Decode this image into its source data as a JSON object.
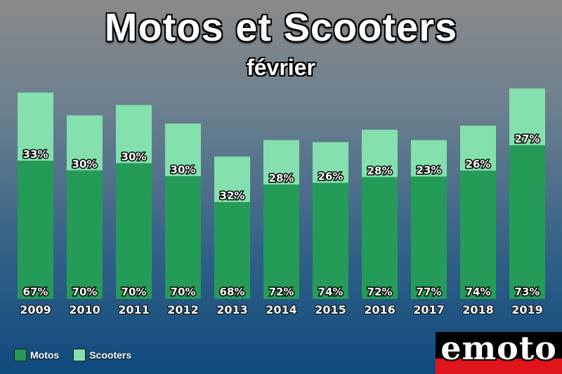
{
  "chart_data": {
    "type": "bar",
    "stacked": true,
    "title": "Motos et Scooters",
    "subtitle": "février",
    "categories": [
      "2009",
      "2010",
      "2011",
      "2012",
      "2013",
      "2014",
      "2015",
      "2016",
      "2017",
      "2018",
      "2019"
    ],
    "series": [
      {
        "name": "Motos",
        "color": "#259b58",
        "values": [
          67,
          70,
          70,
          70,
          68,
          72,
          74,
          72,
          77,
          74,
          73
        ]
      },
      {
        "name": "Scooters",
        "color": "#84e0ad",
        "values": [
          33,
          30,
          30,
          30,
          32,
          28,
          26,
          28,
          23,
          26,
          27
        ]
      }
    ],
    "totals_relative": [
      100,
      89,
      94,
      85,
      69,
      77,
      76,
      82,
      77,
      84,
      102
    ],
    "value_suffix": "%",
    "legend_position": "bottom-left",
    "grid": false
  },
  "legend": {
    "items": [
      {
        "label": "Motos",
        "color": "#259b58"
      },
      {
        "label": "Scooters",
        "color": "#84e0ad"
      }
    ]
  },
  "logo": {
    "text": "emoto"
  }
}
